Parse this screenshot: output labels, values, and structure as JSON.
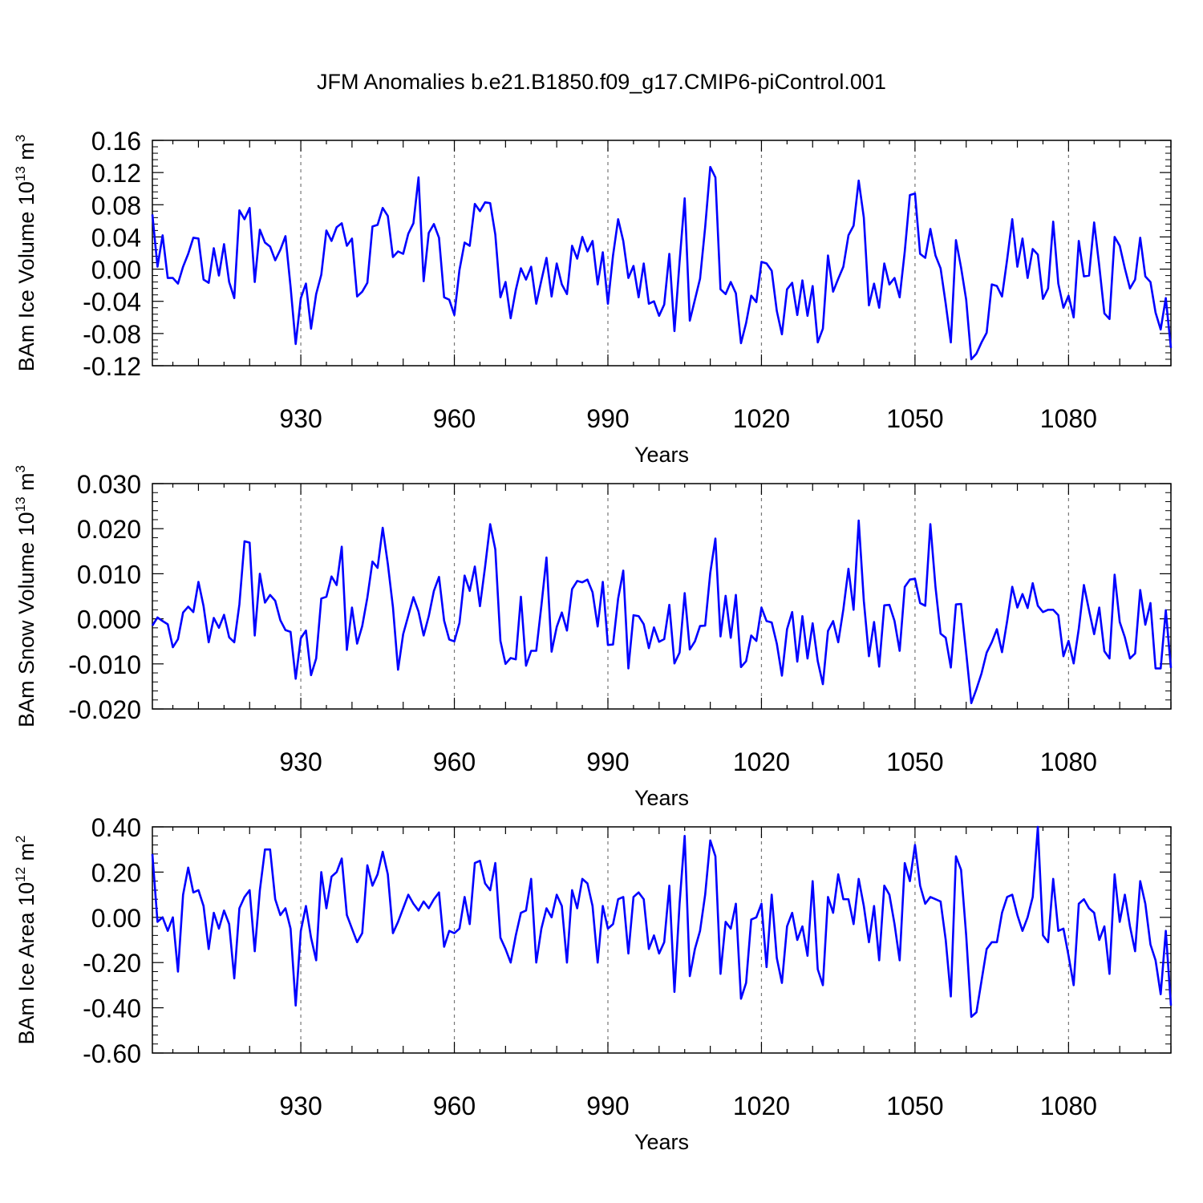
{
  "title": "JFM Anomalies b.e21.B1850.f09_g17.CMIP6-piControl.001",
  "line_color": "#0000ff",
  "chart_data": [
    {
      "type": "line",
      "ylabel": "BAm Ice Volume 10",
      "ylabel_exp": "13",
      "ylabel_unit": "m",
      "ylabel_unit_exp": "3",
      "xlabel": "Years",
      "xlim": [
        901,
        1100
      ],
      "ylim": [
        -0.12,
        0.16
      ],
      "xticks": [
        930,
        960,
        990,
        1020,
        1050,
        1080
      ],
      "xtick_labels": [
        "930",
        "960",
        "990",
        "1020",
        "1050",
        "1080"
      ],
      "yticks": [
        -0.12,
        -0.08,
        -0.04,
        0.0,
        0.04,
        0.08,
        0.12,
        0.16
      ],
      "ytick_labels": [
        "-0.12",
        "-0.08",
        "-0.04",
        "0.00",
        "0.04",
        "0.08",
        "0.12",
        "0.16"
      ],
      "grid": "dashed vertical at x ticks",
      "series": [
        {
          "name": "BAm Ice Volume",
          "x_start": 901,
          "values": [
            0.068,
            0.003,
            0.042,
            -0.011,
            -0.011,
            -0.018,
            0.003,
            0.019,
            0.039,
            0.038,
            -0.013,
            -0.017,
            0.026,
            -0.008,
            0.031,
            -0.016,
            -0.036,
            0.073,
            0.062,
            0.076,
            -0.016,
            0.049,
            0.033,
            0.028,
            0.011,
            0.024,
            0.041,
            -0.022,
            -0.093,
            -0.036,
            -0.018,
            -0.074,
            -0.031,
            -0.007,
            0.048,
            0.035,
            0.052,
            0.057,
            0.029,
            0.038,
            -0.034,
            -0.028,
            -0.017,
            0.053,
            0.055,
            0.076,
            0.066,
            0.015,
            0.022,
            0.019,
            0.044,
            0.057,
            0.114,
            -0.015,
            0.045,
            0.056,
            0.039,
            -0.035,
            -0.038,
            -0.057,
            -0.001,
            0.033,
            0.029,
            0.081,
            0.072,
            0.083,
            0.082,
            0.043,
            -0.035,
            -0.016,
            -0.061,
            -0.026,
            0.001,
            -0.013,
            0.003,
            -0.043,
            -0.014,
            0.014,
            -0.034,
            0.007,
            -0.019,
            -0.031,
            0.029,
            0.013,
            0.04,
            0.022,
            0.035,
            -0.019,
            0.021,
            -0.043,
            0.017,
            0.062,
            0.035,
            -0.011,
            0.004,
            -0.035,
            0.007,
            -0.043,
            -0.04,
            -0.058,
            -0.044,
            0.019,
            -0.077,
            0.009,
            0.088,
            -0.064,
            -0.038,
            -0.012,
            0.052,
            0.127,
            0.114,
            -0.025,
            -0.031,
            -0.016,
            -0.03,
            -0.092,
            -0.067,
            -0.033,
            -0.041,
            0.009,
            0.007,
            -0.002,
            -0.052,
            -0.081,
            -0.025,
            -0.017,
            -0.057,
            -0.014,
            -0.058,
            -0.021,
            -0.091,
            -0.074,
            0.017,
            -0.028,
            -0.012,
            0.003,
            0.042,
            0.054,
            0.11,
            0.064,
            -0.045,
            -0.018,
            -0.048,
            0.007,
            -0.019,
            -0.011,
            -0.035,
            0.022,
            0.092,
            0.094,
            0.019,
            0.014,
            0.05,
            0.017,
            0.001,
            -0.043,
            -0.091,
            0.036,
            0.002,
            -0.038,
            -0.112,
            -0.105,
            -0.091,
            -0.079,
            -0.019,
            -0.021,
            -0.034,
            0.012,
            0.062,
            0.003,
            0.038,
            -0.011,
            0.025,
            0.018,
            -0.037,
            -0.024,
            0.059,
            -0.018,
            -0.048,
            -0.033,
            -0.06,
            0.035,
            -0.009,
            -0.008,
            0.058,
            0.004,
            -0.055,
            -0.062,
            0.04,
            0.029,
            0.001,
            -0.024,
            -0.013,
            0.039,
            -0.009,
            -0.016,
            -0.054,
            -0.075,
            -0.036,
            -0.098
          ]
        }
      ]
    },
    {
      "type": "line",
      "ylabel": "BAm Snow Volume 10",
      "ylabel_exp": "13",
      "ylabel_unit": "m",
      "ylabel_unit_exp": "3",
      "xlabel": "Years",
      "xlim": [
        901,
        1100
      ],
      "ylim": [
        -0.02,
        0.03
      ],
      "xticks": [
        930,
        960,
        990,
        1020,
        1050,
        1080
      ],
      "xtick_labels": [
        "930",
        "960",
        "990",
        "1020",
        "1050",
        "1080"
      ],
      "yticks": [
        -0.02,
        -0.01,
        0.0,
        0.01,
        0.02,
        0.03
      ],
      "ytick_labels": [
        "-0.020",
        "-0.010",
        "0.000",
        "0.010",
        "0.020",
        "0.030"
      ],
      "grid": "dashed vertical at x ticks",
      "series": [
        {
          "name": "BAm Snow Volume",
          "x_start": 901,
          "values": [
            -0.0015,
            0.0003,
            -0.0005,
            -0.0012,
            -0.0063,
            -0.0045,
            0.0014,
            0.0027,
            0.0015,
            0.0082,
            0.0028,
            -0.0052,
            0.0002,
            -0.002,
            0.0009,
            -0.0041,
            -0.0052,
            0.0032,
            0.0172,
            0.0169,
            -0.0037,
            0.01,
            0.0036,
            0.0053,
            0.004,
            -0.0003,
            -0.0025,
            -0.0029,
            -0.0133,
            -0.0043,
            -0.0026,
            -0.0125,
            -0.0088,
            0.0045,
            0.0049,
            0.0094,
            0.0075,
            0.016,
            -0.0069,
            0.0025,
            -0.0055,
            -0.0016,
            0.0047,
            0.0127,
            0.0113,
            0.0202,
            0.0122,
            0.0026,
            -0.0113,
            -0.0034,
            0.0007,
            0.0048,
            0.0016,
            -0.0037,
            0.0006,
            0.0062,
            0.0093,
            -0.0004,
            -0.0046,
            -0.005,
            -0.0009,
            0.0096,
            0.0062,
            0.0116,
            0.0028,
            0.0115,
            0.021,
            0.0154,
            -0.0049,
            -0.01,
            -0.0087,
            -0.009,
            0.0049,
            -0.0104,
            -0.0071,
            -0.0071,
            0.0029,
            0.0136,
            -0.0073,
            -0.0018,
            0.0014,
            -0.0026,
            0.0066,
            0.0084,
            0.0081,
            0.0087,
            0.0059,
            -0.0017,
            0.0082,
            -0.0058,
            -0.0057,
            0.0045,
            0.0107,
            -0.011,
            0.0008,
            0.0006,
            -0.0012,
            -0.0065,
            -0.0019,
            -0.0051,
            -0.0045,
            0.0031,
            -0.0099,
            -0.0075,
            0.0057,
            -0.0068,
            -0.005,
            -0.0016,
            -0.0015,
            0.0102,
            0.0178,
            -0.0039,
            0.0051,
            -0.0042,
            0.0053,
            -0.0107,
            -0.0094,
            -0.0037,
            -0.0049,
            0.0025,
            -0.0005,
            -0.0008,
            -0.0055,
            -0.0126,
            -0.0023,
            0.0015,
            -0.0095,
            0.0006,
            -0.0088,
            -0.001,
            -0.0094,
            -0.0145,
            -0.0027,
            -0.0005,
            -0.0052,
            0.0021,
            0.0111,
            0.002,
            0.0218,
            0.004,
            -0.0083,
            -0.0007,
            -0.0106,
            0.003,
            0.0031,
            -0.0005,
            -0.0071,
            0.0071,
            0.0087,
            0.0089,
            0.0035,
            0.0029,
            0.021,
            0.0071,
            -0.0033,
            -0.0042,
            -0.0108,
            0.0032,
            0.0033,
            -0.0075,
            -0.0187,
            -0.0156,
            -0.0121,
            -0.0075,
            -0.0052,
            -0.0023,
            -0.0074,
            -0.0005,
            0.0071,
            0.0025,
            0.0055,
            0.0024,
            0.0079,
            0.0029,
            0.0015,
            0.002,
            0.002,
            0.0008,
            -0.0083,
            -0.0049,
            -0.0099,
            -0.0022,
            0.0075,
            0.0019,
            -0.0034,
            0.0025,
            -0.0072,
            -0.0088,
            0.0098,
            -0.0007,
            -0.0041,
            -0.0088,
            -0.0077,
            0.0064,
            -0.0013,
            0.0035,
            -0.011,
            -0.011,
            0.0019,
            -0.0109
          ]
        }
      ]
    },
    {
      "type": "line",
      "ylabel": "BAm Ice Area 10",
      "ylabel_exp": "12",
      "ylabel_unit": "m",
      "ylabel_unit_exp": "2",
      "xlabel": "Years",
      "xlim": [
        901,
        1100
      ],
      "ylim": [
        -0.6,
        0.4
      ],
      "xticks": [
        930,
        960,
        990,
        1020,
        1050,
        1080
      ],
      "xtick_labels": [
        "930",
        "960",
        "990",
        "1020",
        "1050",
        "1080"
      ],
      "yticks": [
        -0.6,
        -0.4,
        -0.2,
        0.0,
        0.2,
        0.4
      ],
      "ytick_labels": [
        "-0.60",
        "-0.40",
        "-0.20",
        "0.00",
        "0.20",
        "0.40"
      ],
      "grid": "dashed vertical at x ticks",
      "series": [
        {
          "name": "BAm Ice Area",
          "x_start": 901,
          "values": [
            0.28,
            -0.02,
            0.0,
            -0.06,
            0.0,
            -0.24,
            0.1,
            0.22,
            0.11,
            0.12,
            0.05,
            -0.14,
            0.02,
            -0.05,
            0.03,
            -0.03,
            -0.27,
            0.04,
            0.09,
            0.12,
            -0.15,
            0.12,
            0.3,
            0.3,
            0.08,
            0.01,
            0.04,
            -0.05,
            -0.39,
            -0.06,
            0.05,
            -0.09,
            -0.19,
            0.2,
            0.04,
            0.18,
            0.2,
            0.26,
            0.01,
            -0.05,
            -0.11,
            -0.07,
            0.23,
            0.14,
            0.19,
            0.29,
            0.19,
            -0.07,
            -0.02,
            0.04,
            0.1,
            0.06,
            0.03,
            0.07,
            0.04,
            0.08,
            0.11,
            -0.13,
            -0.06,
            -0.07,
            -0.05,
            0.09,
            -0.03,
            0.24,
            0.25,
            0.15,
            0.12,
            0.24,
            -0.09,
            -0.14,
            -0.2,
            -0.08,
            0.02,
            0.03,
            0.17,
            -0.2,
            -0.05,
            0.04,
            0.0,
            0.1,
            0.05,
            -0.2,
            0.12,
            0.04,
            0.17,
            0.15,
            0.05,
            -0.2,
            0.05,
            -0.05,
            -0.03,
            0.08,
            0.09,
            -0.16,
            0.09,
            0.11,
            0.08,
            -0.14,
            -0.08,
            -0.16,
            -0.11,
            0.14,
            -0.33,
            0.06,
            0.36,
            -0.26,
            -0.14,
            -0.06,
            0.1,
            0.34,
            0.27,
            -0.25,
            -0.02,
            -0.05,
            0.06,
            -0.36,
            -0.29,
            -0.01,
            0.0,
            0.06,
            -0.22,
            0.1,
            -0.18,
            -0.29,
            -0.04,
            0.02,
            -0.1,
            -0.04,
            -0.17,
            0.16,
            -0.23,
            -0.3,
            0.09,
            0.02,
            0.19,
            0.08,
            0.08,
            -0.03,
            0.17,
            0.05,
            -0.11,
            0.05,
            -0.19,
            0.14,
            0.1,
            -0.03,
            -0.19,
            0.24,
            0.16,
            0.32,
            0.14,
            0.06,
            0.09,
            0.08,
            0.07,
            -0.1,
            -0.35,
            0.27,
            0.21,
            -0.08,
            -0.44,
            -0.42,
            -0.28,
            -0.14,
            -0.11,
            -0.11,
            0.02,
            0.09,
            0.1,
            0.01,
            -0.06,
            0.0,
            0.09,
            0.4,
            -0.08,
            -0.11,
            0.17,
            -0.06,
            -0.05,
            -0.17,
            -0.3,
            0.06,
            0.08,
            0.04,
            0.02,
            -0.1,
            -0.04,
            -0.25,
            0.19,
            -0.02,
            0.1,
            -0.04,
            -0.15,
            0.16,
            0.06,
            -0.12,
            -0.19,
            -0.34,
            -0.06,
            -0.39
          ]
        }
      ]
    }
  ]
}
